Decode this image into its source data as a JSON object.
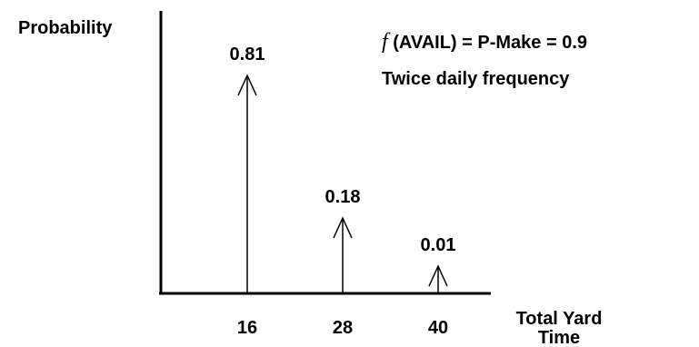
{
  "chart_data": {
    "type": "bar",
    "style": "impulse-arrows",
    "x": [
      16,
      28,
      40
    ],
    "values": [
      0.81,
      0.18,
      0.01
    ],
    "data_labels": [
      "0.81",
      "0.18",
      "0.01"
    ],
    "x_tick_labels": [
      "16",
      "28",
      "40"
    ],
    "ylabel": "Probability",
    "xlabel_line1": "Total Yard",
    "xlabel_line2": "Time",
    "ylim": [
      0,
      1
    ],
    "grid": false,
    "annotations": {
      "line1_symbol": "f",
      "line1_text": " (AVAIL) = P-Make = 0.9",
      "line2_text": "Twice daily frequency"
    },
    "colors": {
      "axis": "#000000",
      "marks": "#000000",
      "background": "#ffffff"
    }
  }
}
